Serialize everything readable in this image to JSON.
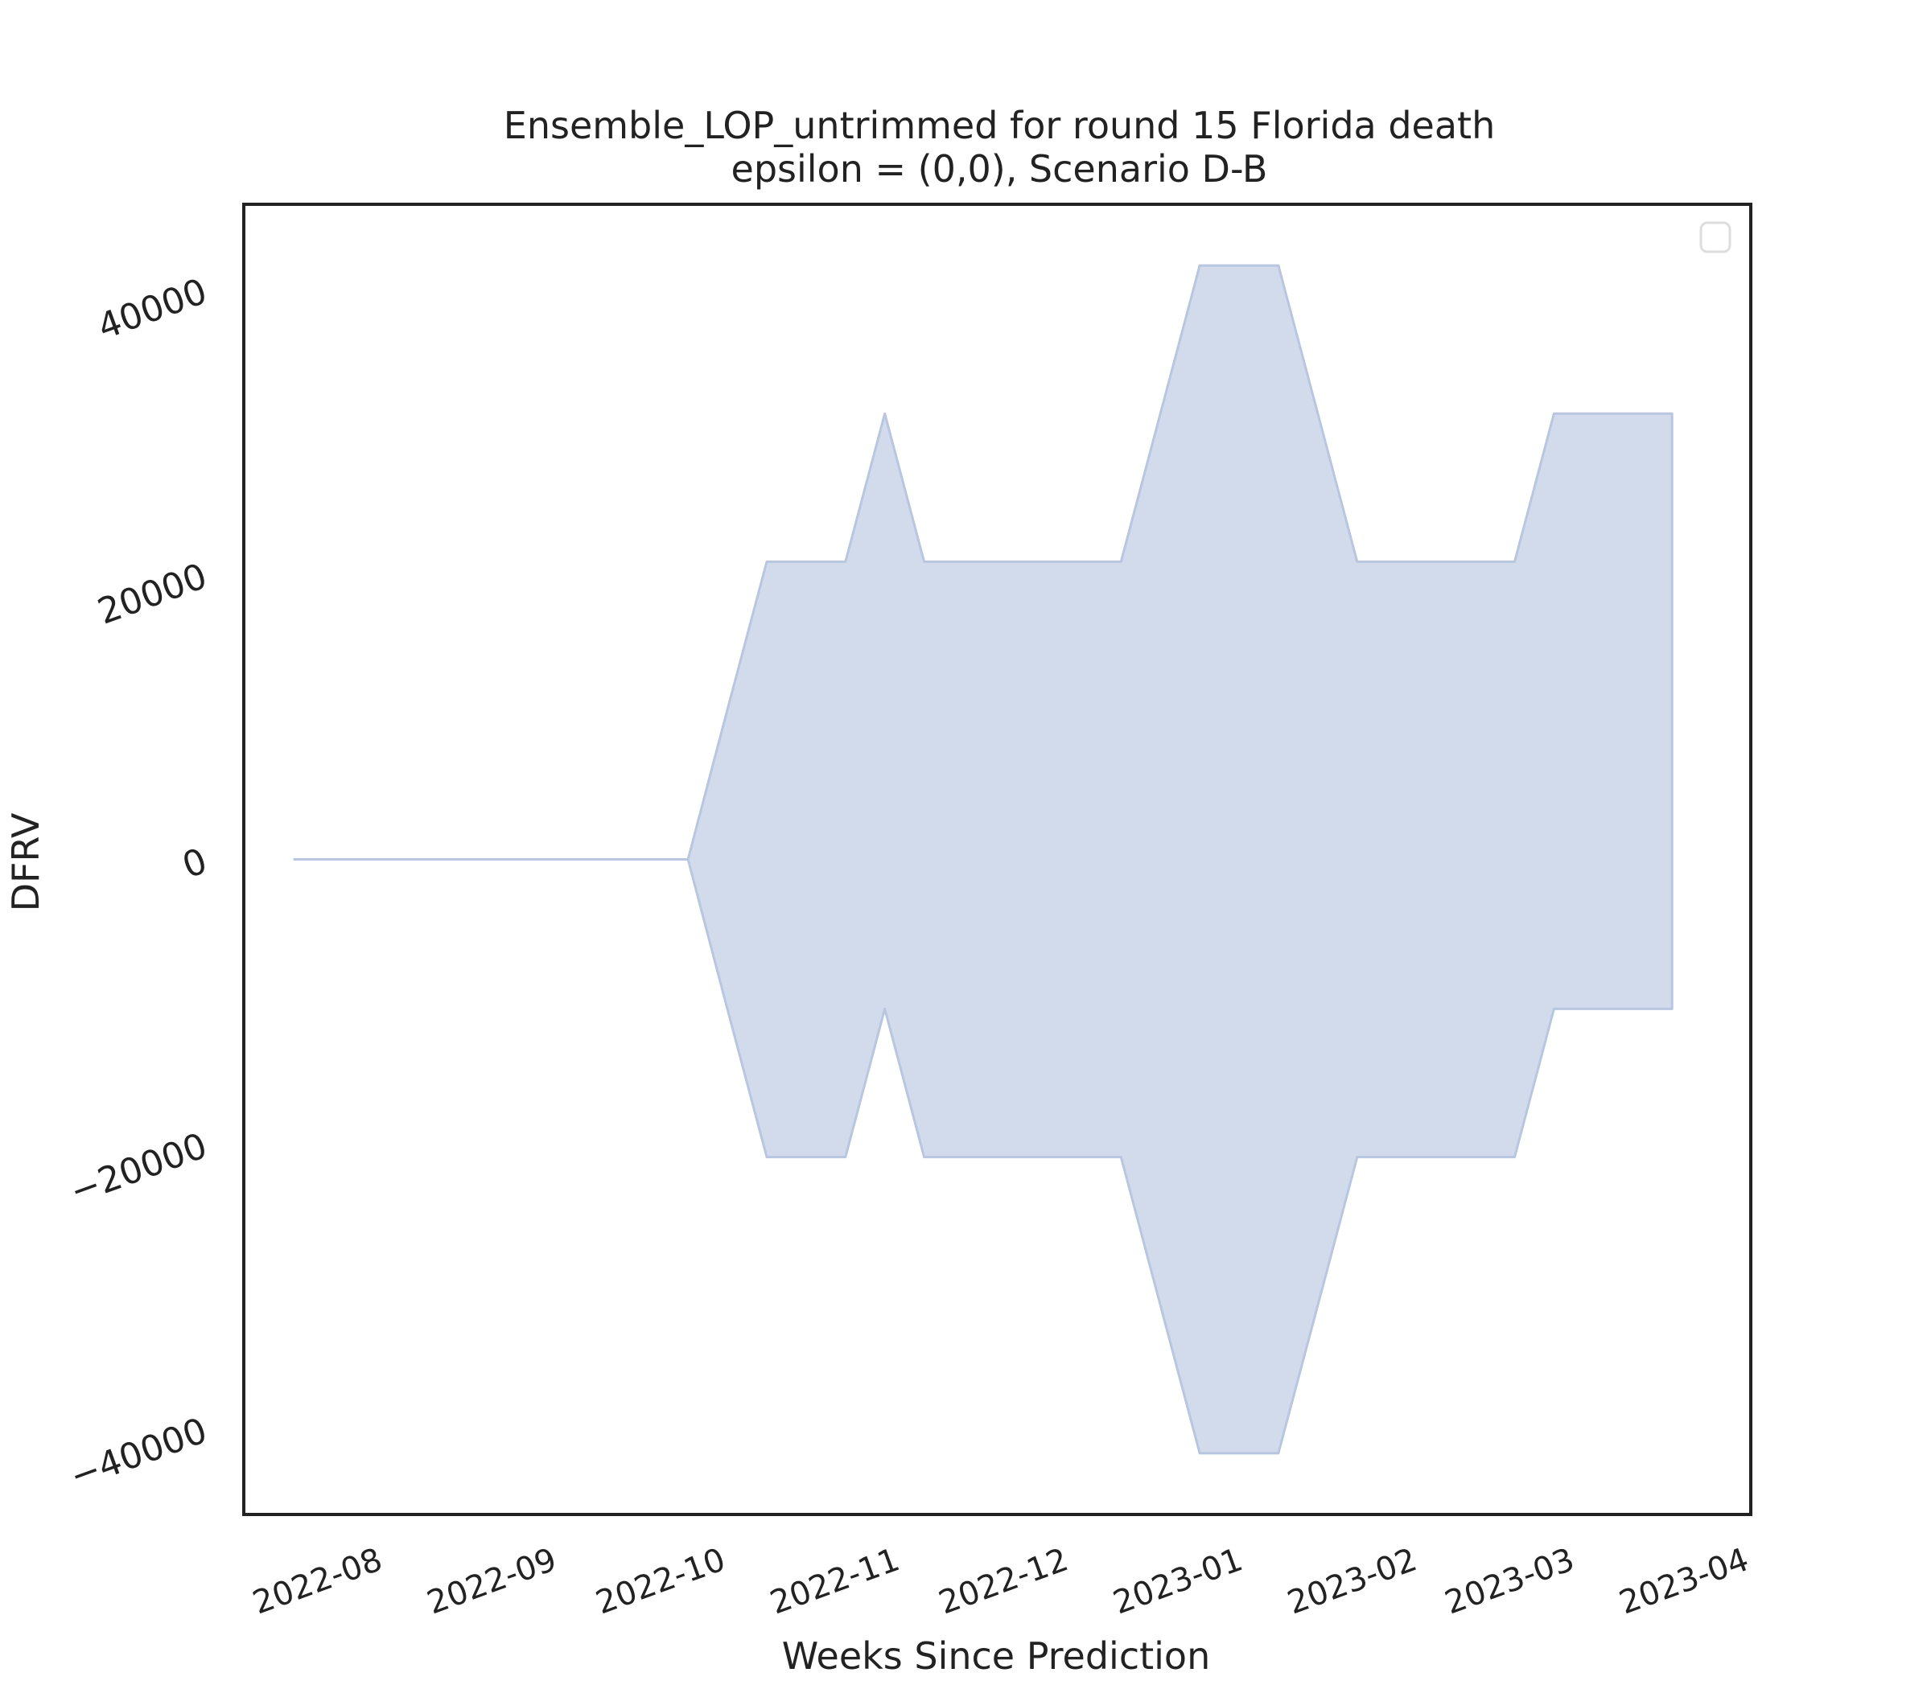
{
  "chart_data": {
    "type": "area",
    "title": "Ensemble_LOP_untrimmed for round 15 Florida death",
    "subtitle": "epsilon = (0,0), Scenario D-B",
    "xlabel": "Weeks Since Prediction",
    "ylabel": "DFRV",
    "x_ticks": [
      "2022-08",
      "2022-09",
      "2022-10",
      "2022-11",
      "2022-12",
      "2023-01",
      "2023-02",
      "2023-03",
      "2023-04"
    ],
    "y_ticks": [
      "−40000",
      "−20000",
      "0",
      "20000",
      "40000"
    ],
    "y_tick_values": [
      -40000,
      -20000,
      0,
      20000,
      40000
    ],
    "xlim": [
      "2022-07-07",
      "2023-04-01"
    ],
    "ylim": [
      -46000,
      46000
    ],
    "grid": false,
    "legend": "top-right (empty)",
    "series": [
      {
        "x": [
          "2022-07-16",
          "2022-07-23",
          "2022-07-30",
          "2022-08-06",
          "2022-08-13",
          "2022-08-20",
          "2022-08-27",
          "2022-09-03",
          "2022-09-10",
          "2022-09-17",
          "2022-09-24",
          "2022-10-01",
          "2022-10-08",
          "2022-10-15",
          "2022-10-22",
          "2022-10-29",
          "2022-11-05",
          "2022-11-12",
          "2022-11-19",
          "2022-11-26",
          "2022-12-03",
          "2022-12-10",
          "2022-12-17",
          "2022-12-24",
          "2022-12-31",
          "2023-01-07",
          "2023-01-14",
          "2023-01-21",
          "2023-01-28",
          "2023-02-04",
          "2023-02-11",
          "2023-02-18",
          "2023-02-25",
          "2023-03-04",
          "2023-03-11",
          "2023-03-18"
        ],
        "lower": [
          0,
          0,
          0,
          0,
          0,
          0,
          0,
          0,
          0,
          0,
          0,
          -10500,
          -20900,
          -20900,
          -20900,
          -10500,
          -20900,
          -20900,
          -20900,
          -20900,
          -20900,
          -20900,
          -31300,
          -41700,
          -41700,
          -41700,
          -31300,
          -20900,
          -20900,
          -20900,
          -20900,
          -20900,
          -10500,
          -10500,
          -10500,
          -10500
        ],
        "upper": [
          0,
          0,
          0,
          0,
          0,
          0,
          0,
          0,
          0,
          0,
          0,
          10500,
          20900,
          20900,
          20900,
          31300,
          20900,
          20900,
          20900,
          20900,
          20900,
          20900,
          31300,
          41700,
          41700,
          41700,
          31300,
          20900,
          20900,
          20900,
          20900,
          20900,
          31300,
          31300,
          31300,
          31300
        ]
      }
    ],
    "colors": {
      "fill": "#d2dbeb",
      "edge": "#b9c6df",
      "axes": "#222222"
    }
  }
}
